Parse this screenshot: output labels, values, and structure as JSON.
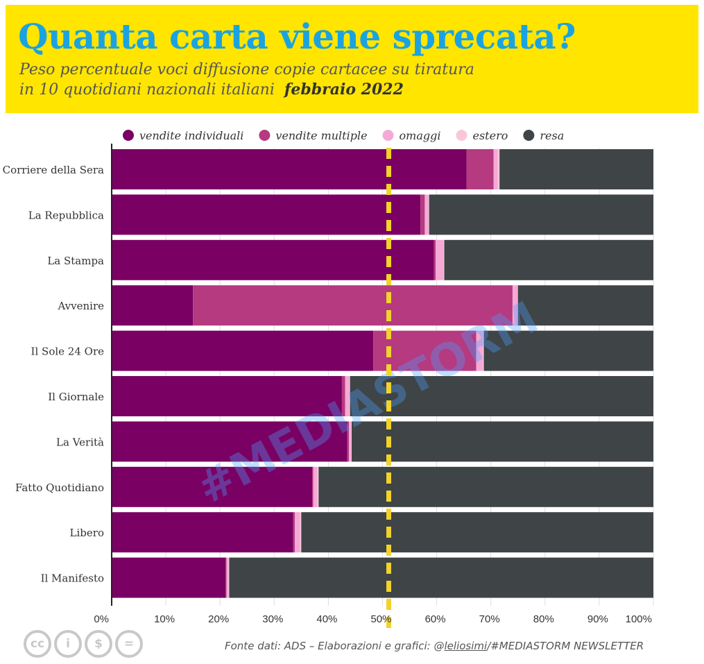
{
  "header": {
    "title": "Quanta carta viene sprecata?",
    "subtitle_line1": "Peso percentuale voci diffusione copie cartacee su tiratura",
    "subtitle_line2": "in 10 quotidiani nazionali italiani",
    "subtitle_period": "febbraio 2022",
    "background_color": "#ffe500",
    "title_color": "#1aa3e0"
  },
  "chart_data": {
    "type": "bar",
    "orientation": "horizontal",
    "stacked": true,
    "categories": [
      "Corriere della Sera",
      "La Repubblica",
      "La Stampa",
      "Avvenire",
      "Il Sole 24 Ore",
      "Il Giornale",
      "La Verità",
      "Fatto Quotidiano",
      "Libero",
      "Il Manifesto"
    ],
    "series": [
      {
        "name": "vendite individuali",
        "color": "#7a0063",
        "values": [
          65.5,
          57,
          59.5,
          15,
          48.3,
          42.5,
          43.5,
          37,
          33.5,
          21
        ]
      },
      {
        "name": "vendite multiple",
        "color": "#b53a80",
        "values": [
          5,
          0.8,
          0.3,
          59,
          19,
          0.6,
          0.3,
          0.2,
          0.3,
          0.2
        ]
      },
      {
        "name": "omaggi",
        "color": "#f5a9d6",
        "values": [
          0.8,
          0.7,
          1.5,
          1,
          1.2,
          0.8,
          0.4,
          0.8,
          1.0,
          0.4
        ]
      },
      {
        "name": "estero",
        "color": "#f9c7d9",
        "values": [
          0.3,
          0.1,
          0.1,
          0,
          0.2,
          0.1,
          0.1,
          0.2,
          0.2,
          0.1
        ]
      },
      {
        "name": "resa",
        "color": "#3f4447",
        "values": [
          28.4,
          41.4,
          38.6,
          25,
          31.3,
          56,
          55.7,
          61.8,
          65.0,
          78.3
        ]
      }
    ],
    "xlim": [
      0,
      100
    ],
    "x_ticks": [
      "0%",
      "10%",
      "20%",
      "30%",
      "40%",
      "50%",
      "60%",
      "70%",
      "80%",
      "90%",
      "100%"
    ],
    "reference_line": {
      "value": 50,
      "color": "#f2d22b",
      "style": "dashed"
    },
    "legend_position": "top",
    "grid": true,
    "watermark": "#MEDIASTORM"
  },
  "footer": {
    "source_prefix": "Fonte dati: ADS – Elaborazioni e grafici: @",
    "source_handle": "leliosimi",
    "source_suffix": "/#MEDIASTORM NEWSLETTER",
    "license_icons": [
      "cc-icon",
      "by-icon",
      "nc-icon",
      "nd-icon"
    ],
    "license_labels": [
      "cc",
      "i",
      "$",
      "="
    ]
  }
}
